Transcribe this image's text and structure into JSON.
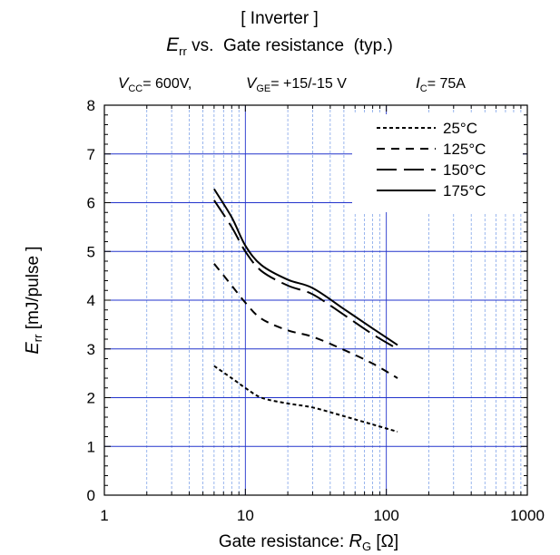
{
  "chart_data": {
    "type": "line",
    "title_lines": {
      "line1": "[ Inverter ]",
      "line2": {
        "var": "E",
        "sub": "rr",
        "rest": " vs.  Gate resistance  (typ.)"
      },
      "line3": [
        {
          "var": "V",
          "sub": "CC",
          "rest": "= 600V,"
        },
        {
          "var": "V",
          "sub": "GE",
          "rest": "= +15/-15 V"
        },
        {
          "var": "I",
          "sub": "C",
          "rest": "= 75A"
        }
      ]
    },
    "xlabel": {
      "text": "Gate resistance: ",
      "var": "R",
      "sub": "G",
      "unit": " [Ω]"
    },
    "ylabel": {
      "var": "E",
      "sub": "rr",
      "unit": " [mJ/pulse ]"
    },
    "x_scale": "log",
    "xlim": [
      1,
      1000
    ],
    "ylim": [
      0,
      8
    ],
    "x_ticks": [
      1,
      10,
      100,
      1000
    ],
    "x_tick_labels": [
      "1",
      "10",
      "100",
      "1000"
    ],
    "y_ticks": [
      0,
      1,
      2,
      3,
      4,
      5,
      6,
      7,
      8
    ],
    "y_tick_labels": [
      "0",
      "1",
      "2",
      "3",
      "4",
      "5",
      "6",
      "7",
      "8"
    ],
    "grid": true,
    "legend_position": "top-right",
    "colors": {
      "major_grid": "#2233cc",
      "minor_grid": "#6f97e6",
      "curve": "#000000"
    },
    "series": [
      {
        "name": "25°C",
        "dash": "short",
        "x": [
          6,
          8,
          10,
          13,
          20,
          30,
          50,
          80,
          120
        ],
        "y": [
          2.65,
          2.4,
          2.2,
          2.0,
          1.88,
          1.8,
          1.62,
          1.45,
          1.3
        ]
      },
      {
        "name": "125°C",
        "dash": "medium",
        "x": [
          6,
          8,
          10,
          13,
          20,
          30,
          50,
          80,
          120
        ],
        "y": [
          4.75,
          4.3,
          3.95,
          3.62,
          3.38,
          3.25,
          2.98,
          2.7,
          2.4
        ]
      },
      {
        "name": "150°C",
        "dash": "long",
        "x": [
          6,
          8,
          10,
          13,
          20,
          30,
          50,
          80,
          120
        ],
        "y": [
          6.05,
          5.5,
          5.0,
          4.6,
          4.3,
          4.12,
          3.7,
          3.3,
          3.0
        ]
      },
      {
        "name": "175°C",
        "dash": "solid",
        "x": [
          6,
          8,
          10,
          13,
          20,
          30,
          50,
          80,
          120
        ],
        "y": [
          6.28,
          5.7,
          5.12,
          4.72,
          4.42,
          4.25,
          3.82,
          3.42,
          3.08
        ]
      }
    ]
  }
}
